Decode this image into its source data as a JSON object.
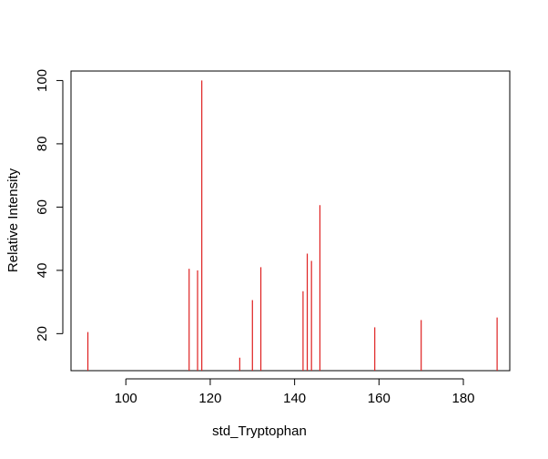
{
  "chart_data": {
    "type": "bar",
    "xlabel": "std_Tryptophan",
    "ylabel": "Relative Intensity",
    "xlim": [
      87,
      191
    ],
    "ylim": [
      8.3,
      103
    ],
    "x_ticks": [
      100,
      120,
      140,
      160,
      180
    ],
    "y_ticks": [
      20,
      40,
      60,
      80,
      100
    ],
    "grid": false,
    "bar_color": "#DF2020",
    "points": [
      {
        "x": 91,
        "y": 20.5
      },
      {
        "x": 115,
        "y": 40.5
      },
      {
        "x": 117,
        "y": 40
      },
      {
        "x": 118,
        "y": 100
      },
      {
        "x": 127,
        "y": 12.4
      },
      {
        "x": 130,
        "y": 30.6
      },
      {
        "x": 132,
        "y": 41
      },
      {
        "x": 142,
        "y": 33.4
      },
      {
        "x": 143,
        "y": 45.3
      },
      {
        "x": 144,
        "y": 43
      },
      {
        "x": 146,
        "y": 60.6
      },
      {
        "x": 159,
        "y": 22
      },
      {
        "x": 170,
        "y": 24.3
      },
      {
        "x": 188,
        "y": 25.1
      }
    ]
  }
}
